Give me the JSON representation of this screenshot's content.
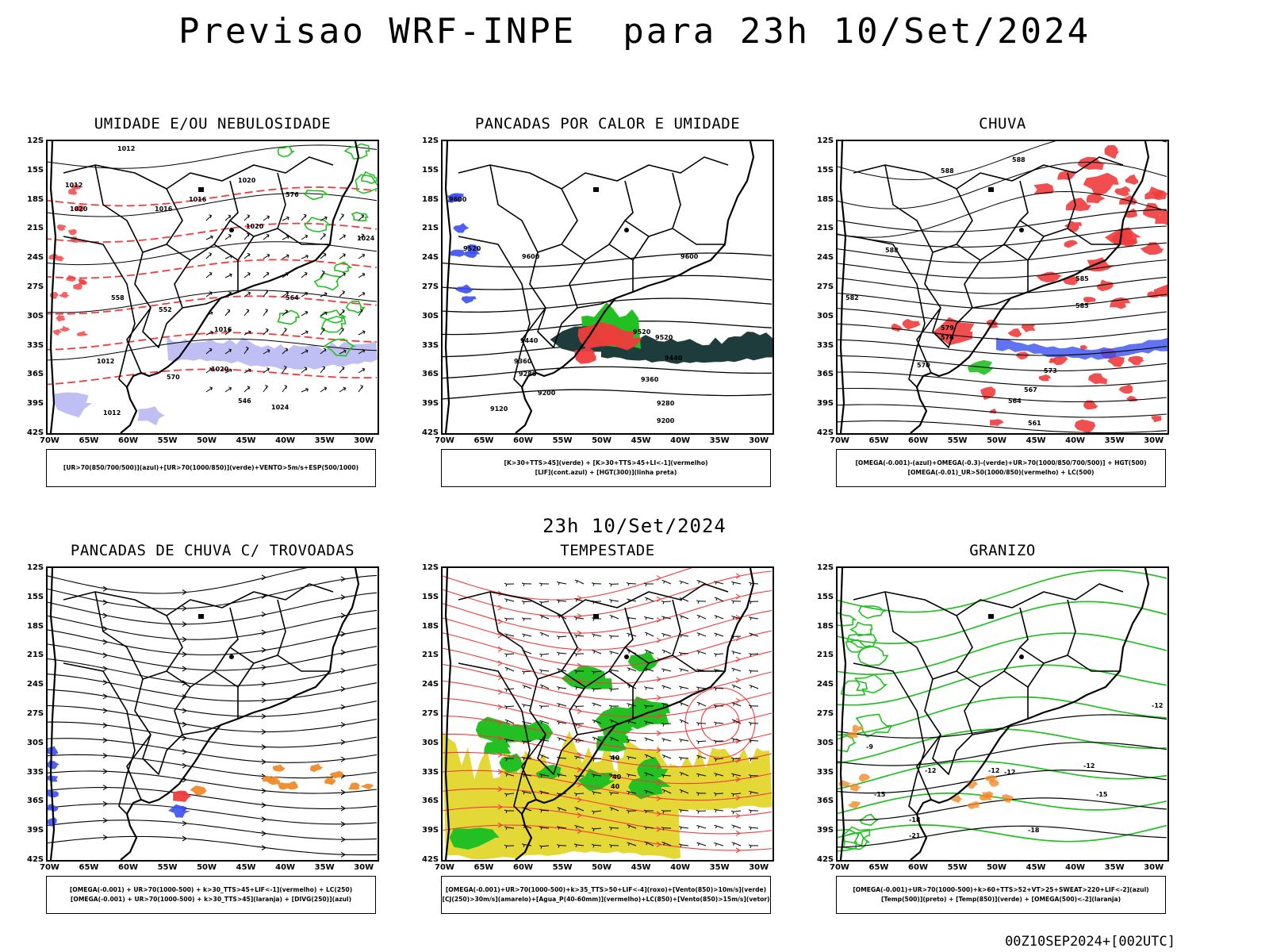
{
  "main_title": "Previsao WRF-INPE  para 23h 10/Set/2024",
  "mid_title": "23h 10/Set/2024",
  "footer": "00Z10SEP2024+[002UTC]",
  "lat_labels": [
    "12S",
    "15S",
    "18S",
    "21S",
    "24S",
    "27S",
    "30S",
    "33S",
    "36S",
    "39S",
    "42S"
  ],
  "lon_labels": [
    "70W",
    "65W",
    "60W",
    "55W",
    "50W",
    "45W",
    "40W",
    "35W",
    "30W"
  ],
  "colors": {
    "blue": "#3a4ff0",
    "green": "#22c022",
    "red": "#f03c3c",
    "orange": "#f08a28",
    "yellow": "#e4d836",
    "dark_teal": "#1f3c3c",
    "lavender": "#b8b8f2"
  },
  "panels": [
    {
      "title": "UMIDADE E/OU NEBULOSIDADE",
      "legend": [
        "[UR>70(850/700/500)](azul)+[UR>70(1000/850)](verde)+VENTO>5m/s+ESP(500/1000)"
      ],
      "labels": [
        "1012",
        "1012",
        "1020",
        "1016",
        "1016",
        "1020",
        "1020",
        "1024",
        "1016",
        "1012",
        "1020",
        "1024",
        "1012",
        "576",
        "570",
        "564",
        "558",
        "552",
        "546"
      ]
    },
    {
      "title": "PANCADAS POR CALOR E UMIDADE",
      "legend": [
        "[K>30+TTS>45](verde) + [K>30+TTS>45+LI<-1](vermelho)",
        "[LIF](cont.azul) + [HGT(300)](linha preta)"
      ],
      "labels": [
        "9600",
        "9600",
        "9600",
        "9520",
        "9520",
        "9520",
        "9440",
        "9440",
        "9360",
        "9360",
        "9280",
        "9280",
        "9200",
        "9200",
        "9120"
      ]
    },
    {
      "title": "CHUVA",
      "legend": [
        "[OMEGA(-0.001)-(azul)+OMEGA(-0.3)-(verde)+UR>70(1000/850/700/500)] + HGT(500)",
        "[OMEGA(-0.01)_UR>50(1000/850)(vermelho) + LC(500)"
      ],
      "labels": [
        "588",
        "588",
        "588",
        "585",
        "585",
        "582",
        "579",
        "576",
        "573",
        "570",
        "567",
        "564",
        "561"
      ]
    },
    {
      "title": "PANCADAS DE CHUVA C/ TROVOADAS",
      "legend": [
        "[OMEGA(-0.001) + UR>70(1000-500) + k>30_TTS>45+LIF<-1](vermelho) + LC(250)",
        "[OMEGA(-0.001) + UR>70(1000-500) + k>30_TTS>45](laranja) + [DIVG(250)](azul)"
      ],
      "labels": []
    },
    {
      "title": "TEMPESTADE",
      "legend": [
        "[OMEGA(-0.001)+UR>70(1000-500)+k>35_TTS>50+LIF<-4](roxo)+[Vento(850)>10m/s](verde)",
        "[CJ(250)>30m/s](amarelo)+[Agua_P(40-60mm)](vermelho)+LC(850)+[Vento(850)>15m/s](vetor)"
      ],
      "labels": [
        "40",
        "40",
        "40"
      ]
    },
    {
      "title": "GRANIZO",
      "legend": [
        "[OMEGA(-0.001)+UR>70(1000-500)+k>60+TTS>52+VT>25+SWEAT>220+LIF<-2](azul)",
        "[Temp(500)](preto) + [Temp(850)](verde) + [OMEGA(500)<-2](laranja)"
      ],
      "labels": [
        "-9",
        "-12",
        "-12",
        "-12",
        "-12",
        "-15",
        "-15",
        "-18",
        "-18",
        "-21",
        "-12"
      ]
    }
  ]
}
